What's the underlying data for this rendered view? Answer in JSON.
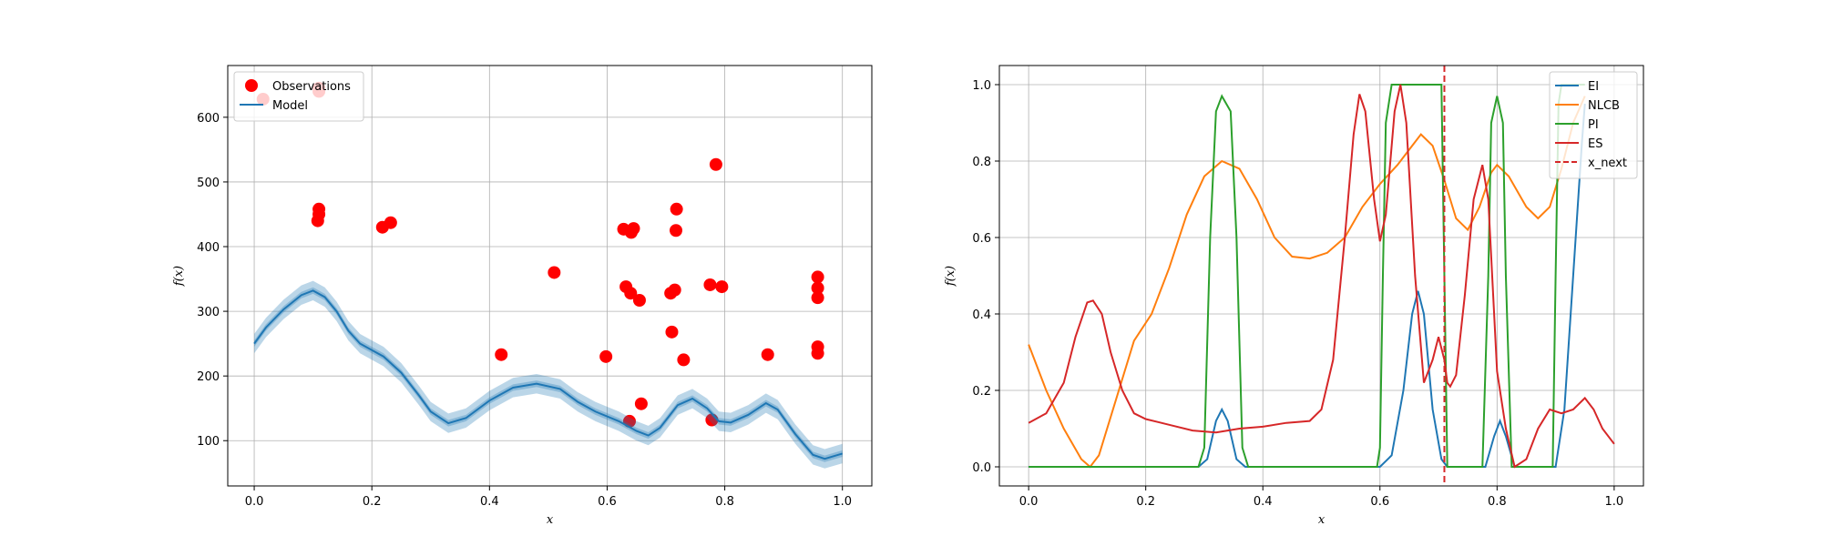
{
  "chart_data": [
    {
      "type": "scatter",
      "xlabel": "x",
      "ylabel": "f(x)",
      "xlim": [
        -0.045,
        1.05
      ],
      "ylim": [
        30,
        680
      ],
      "xticks": [
        0.0,
        0.2,
        0.4,
        0.6,
        0.8,
        1.0
      ],
      "yticks": [
        100,
        200,
        300,
        400,
        500,
        600
      ],
      "xtick_labels": [
        "0.0",
        "0.2",
        "0.4",
        "0.6",
        "0.8",
        "1.0"
      ],
      "ytick_labels": [
        "100",
        "200",
        "300",
        "400",
        "500",
        "600"
      ],
      "grid": true,
      "legend_position": "upper-left",
      "series": [
        {
          "name": "Observations",
          "kind": "scatter",
          "color": "#ff0000",
          "points": [
            [
              0.015,
              628
            ],
            [
              0.11,
              640
            ],
            [
              0.11,
              645
            ],
            [
              0.11,
              458
            ],
            [
              0.11,
              450
            ],
            [
              0.108,
              440
            ],
            [
              0.218,
              430
            ],
            [
              0.232,
              437
            ],
            [
              0.42,
              233
            ],
            [
              0.51,
              360
            ],
            [
              0.598,
              230
            ],
            [
              0.628,
              427
            ],
            [
              0.632,
              338
            ],
            [
              0.638,
              130
            ],
            [
              0.64,
              328
            ],
            [
              0.641,
              422
            ],
            [
              0.645,
              428
            ],
            [
              0.655,
              317
            ],
            [
              0.658,
              157
            ],
            [
              0.708,
              328
            ],
            [
              0.71,
              268
            ],
            [
              0.715,
              333
            ],
            [
              0.717,
              425
            ],
            [
              0.718,
              458
            ],
            [
              0.73,
              225
            ],
            [
              0.775,
              341
            ],
            [
              0.778,
              132
            ],
            [
              0.785,
              527
            ],
            [
              0.795,
              338
            ],
            [
              0.873,
              233
            ],
            [
              0.958,
              353
            ],
            [
              0.958,
              336
            ],
            [
              0.958,
              321
            ],
            [
              0.958,
              245
            ],
            [
              0.958,
              235
            ]
          ]
        },
        {
          "name": "Model",
          "kind": "line",
          "color": "#1f77b4",
          "points": [
            [
              0.0,
              250
            ],
            [
              0.02,
              275
            ],
            [
              0.05,
              303
            ],
            [
              0.08,
              325
            ],
            [
              0.1,
              332
            ],
            [
              0.12,
              322
            ],
            [
              0.14,
              300
            ],
            [
              0.16,
              270
            ],
            [
              0.18,
              250
            ],
            [
              0.2,
              240
            ],
            [
              0.22,
              230
            ],
            [
              0.25,
              205
            ],
            [
              0.28,
              170
            ],
            [
              0.3,
              145
            ],
            [
              0.33,
              127
            ],
            [
              0.36,
              135
            ],
            [
              0.4,
              162
            ],
            [
              0.44,
              182
            ],
            [
              0.48,
              188
            ],
            [
              0.52,
              180
            ],
            [
              0.55,
              160
            ],
            [
              0.58,
              145
            ],
            [
              0.62,
              130
            ],
            [
              0.65,
              115
            ],
            [
              0.67,
              108
            ],
            [
              0.69,
              120
            ],
            [
              0.72,
              155
            ],
            [
              0.745,
              165
            ],
            [
              0.77,
              150
            ],
            [
              0.79,
              130
            ],
            [
              0.81,
              128
            ],
            [
              0.84,
              140
            ],
            [
              0.87,
              158
            ],
            [
              0.89,
              148
            ],
            [
              0.92,
              110
            ],
            [
              0.95,
              78
            ],
            [
              0.97,
              72
            ],
            [
              1.0,
              80
            ]
          ],
          "band": [
            5,
            15
          ]
        }
      ]
    },
    {
      "type": "line",
      "xlabel": "x",
      "ylabel": "f(x)",
      "xlim": [
        -0.05,
        1.05
      ],
      "ylim": [
        -0.05,
        1.05
      ],
      "xticks": [
        0.0,
        0.2,
        0.4,
        0.6,
        0.8,
        1.0
      ],
      "yticks": [
        0.0,
        0.2,
        0.4,
        0.6,
        0.8,
        1.0
      ],
      "xtick_labels": [
        "0.0",
        "0.2",
        "0.4",
        "0.6",
        "0.8",
        "1.0"
      ],
      "ytick_labels": [
        "0.0",
        "0.2",
        "0.4",
        "0.6",
        "0.8",
        "1.0"
      ],
      "grid": true,
      "legend_position": "upper-right",
      "series": [
        {
          "name": "EI",
          "color": "#1f77b4",
          "points": [
            [
              0.0,
              0
            ],
            [
              0.29,
              0
            ],
            [
              0.305,
              0.02
            ],
            [
              0.32,
              0.12
            ],
            [
              0.33,
              0.15
            ],
            [
              0.34,
              0.12
            ],
            [
              0.355,
              0.02
            ],
            [
              0.37,
              0
            ],
            [
              0.6,
              0
            ],
            [
              0.62,
              0.03
            ],
            [
              0.64,
              0.2
            ],
            [
              0.655,
              0.4
            ],
            [
              0.665,
              0.46
            ],
            [
              0.675,
              0.4
            ],
            [
              0.69,
              0.15
            ],
            [
              0.705,
              0.02
            ],
            [
              0.715,
              0
            ],
            [
              0.78,
              0
            ],
            [
              0.795,
              0.08
            ],
            [
              0.805,
              0.12
            ],
            [
              0.815,
              0.08
            ],
            [
              0.83,
              0
            ],
            [
              0.9,
              0
            ],
            [
              0.915,
              0.15
            ],
            [
              0.93,
              0.5
            ],
            [
              0.945,
              0.85
            ],
            [
              0.95,
              0.95
            ]
          ]
        },
        {
          "name": "NLCB",
          "color": "#ff7f0e",
          "points": [
            [
              0.0,
              0.32
            ],
            [
              0.03,
              0.2
            ],
            [
              0.06,
              0.1
            ],
            [
              0.09,
              0.02
            ],
            [
              0.105,
              0.0
            ],
            [
              0.12,
              0.03
            ],
            [
              0.15,
              0.18
            ],
            [
              0.18,
              0.33
            ],
            [
              0.21,
              0.4
            ],
            [
              0.24,
              0.52
            ],
            [
              0.27,
              0.66
            ],
            [
              0.3,
              0.76
            ],
            [
              0.33,
              0.8
            ],
            [
              0.36,
              0.78
            ],
            [
              0.39,
              0.7
            ],
            [
              0.42,
              0.6
            ],
            [
              0.45,
              0.55
            ],
            [
              0.48,
              0.545
            ],
            [
              0.51,
              0.56
            ],
            [
              0.54,
              0.6
            ],
            [
              0.57,
              0.68
            ],
            [
              0.6,
              0.74
            ],
            [
              0.63,
              0.79
            ],
            [
              0.65,
              0.83
            ],
            [
              0.67,
              0.87
            ],
            [
              0.69,
              0.84
            ],
            [
              0.71,
              0.75
            ],
            [
              0.73,
              0.65
            ],
            [
              0.75,
              0.62
            ],
            [
              0.77,
              0.68
            ],
            [
              0.79,
              0.77
            ],
            [
              0.8,
              0.79
            ],
            [
              0.82,
              0.76
            ],
            [
              0.85,
              0.68
            ],
            [
              0.87,
              0.65
            ],
            [
              0.89,
              0.68
            ],
            [
              0.91,
              0.78
            ],
            [
              0.93,
              0.9
            ],
            [
              0.95,
              0.97
            ]
          ]
        },
        {
          "name": "PI",
          "color": "#2ca02c",
          "points": [
            [
              0.0,
              0
            ],
            [
              0.29,
              0
            ],
            [
              0.3,
              0.05
            ],
            [
              0.31,
              0.6
            ],
            [
              0.32,
              0.93
            ],
            [
              0.33,
              0.97
            ],
            [
              0.345,
              0.93
            ],
            [
              0.355,
              0.6
            ],
            [
              0.365,
              0.05
            ],
            [
              0.375,
              0
            ],
            [
              0.595,
              0
            ],
            [
              0.6,
              0.05
            ],
            [
              0.605,
              0.5
            ],
            [
              0.61,
              0.9
            ],
            [
              0.62,
              1.0
            ],
            [
              0.705,
              1.0
            ],
            [
              0.71,
              0.5
            ],
            [
              0.715,
              0
            ],
            [
              0.775,
              0
            ],
            [
              0.785,
              0.5
            ],
            [
              0.79,
              0.9
            ],
            [
              0.8,
              0.97
            ],
            [
              0.81,
              0.9
            ],
            [
              0.815,
              0.5
            ],
            [
              0.825,
              0
            ],
            [
              0.895,
              0
            ],
            [
              0.9,
              0.5
            ],
            [
              0.905,
              0.95
            ],
            [
              0.91,
              1.0
            ],
            [
              0.95,
              1.0
            ]
          ]
        },
        {
          "name": "ES",
          "color": "#d62728",
          "points": [
            [
              0.0,
              0.115
            ],
            [
              0.03,
              0.14
            ],
            [
              0.06,
              0.22
            ],
            [
              0.08,
              0.34
            ],
            [
              0.1,
              0.43
            ],
            [
              0.11,
              0.435
            ],
            [
              0.125,
              0.4
            ],
            [
              0.14,
              0.3
            ],
            [
              0.16,
              0.2
            ],
            [
              0.18,
              0.14
            ],
            [
              0.2,
              0.125
            ],
            [
              0.24,
              0.11
            ],
            [
              0.28,
              0.095
            ],
            [
              0.32,
              0.09
            ],
            [
              0.36,
              0.1
            ],
            [
              0.4,
              0.105
            ],
            [
              0.44,
              0.115
            ],
            [
              0.48,
              0.12
            ],
            [
              0.5,
              0.15
            ],
            [
              0.52,
              0.28
            ],
            [
              0.54,
              0.6
            ],
            [
              0.555,
              0.87
            ],
            [
              0.565,
              0.975
            ],
            [
              0.575,
              0.93
            ],
            [
              0.59,
              0.7
            ],
            [
              0.6,
              0.59
            ],
            [
              0.61,
              0.66
            ],
            [
              0.625,
              0.93
            ],
            [
              0.635,
              1.0
            ],
            [
              0.645,
              0.9
            ],
            [
              0.66,
              0.5
            ],
            [
              0.675,
              0.22
            ],
            [
              0.69,
              0.28
            ],
            [
              0.7,
              0.34
            ],
            [
              0.71,
              0.28
            ],
            [
              0.715,
              0.22
            ],
            [
              0.72,
              0.21
            ],
            [
              0.73,
              0.24
            ],
            [
              0.745,
              0.45
            ],
            [
              0.76,
              0.7
            ],
            [
              0.775,
              0.79
            ],
            [
              0.785,
              0.7
            ],
            [
              0.8,
              0.25
            ],
            [
              0.815,
              0.1
            ],
            [
              0.83,
              0.0
            ],
            [
              0.85,
              0.02
            ],
            [
              0.87,
              0.1
            ],
            [
              0.89,
              0.15
            ],
            [
              0.91,
              0.14
            ],
            [
              0.93,
              0.15
            ],
            [
              0.95,
              0.18
            ],
            [
              0.965,
              0.15
            ],
            [
              0.98,
              0.1
            ],
            [
              1.0,
              0.06
            ]
          ]
        },
        {
          "name": "x_next",
          "kind": "vline",
          "color": "#d62728",
          "dashed": true,
          "x": 0.71
        }
      ]
    }
  ]
}
